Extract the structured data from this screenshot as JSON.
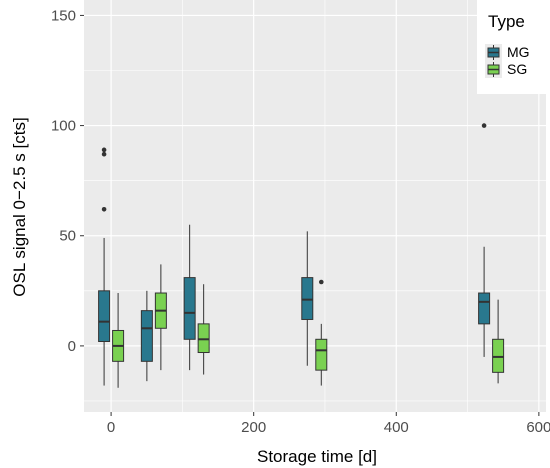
{
  "chart_data": {
    "type": "box",
    "xlabel": "Storage time [d]",
    "ylabel": "OSL signal 0−2.5 s [cts]",
    "xlim": [
      -38,
      610
    ],
    "ylim": [
      -30,
      157
    ],
    "x_ticks": [
      0,
      200,
      400,
      600
    ],
    "y_ticks": [
      0,
      50,
      100,
      150
    ],
    "x_tick_labels": [
      "0",
      "200",
      "400",
      "600"
    ],
    "y_tick_labels": [
      "0",
      "50",
      "100",
      "150"
    ],
    "grid": true,
    "legend": {
      "title": "Type",
      "position": "top-right",
      "entries": [
        "MG",
        "SG"
      ]
    },
    "series": [
      {
        "name": "MG",
        "color": "#29788e",
        "boxes": [
          {
            "x": 0,
            "min": -18,
            "q1": 2,
            "median": 11,
            "q3": 25,
            "max": 49,
            "outliers": [
              62,
              87,
              89
            ]
          },
          {
            "x": 60,
            "min": -16,
            "q1": -7,
            "median": 8,
            "q3": 16,
            "max": 25,
            "outliers": []
          },
          {
            "x": 120,
            "min": -11,
            "q1": 3,
            "median": 15,
            "q3": 31,
            "max": 55,
            "outliers": []
          },
          {
            "x": 285,
            "min": -9,
            "q1": 12,
            "median": 21,
            "q3": 31,
            "max": 52,
            "outliers": []
          },
          {
            "x": 533,
            "min": -5,
            "q1": 10,
            "median": 20,
            "q3": 24,
            "max": 45,
            "outliers": [
              100
            ]
          }
        ]
      },
      {
        "name": "SG",
        "color": "#7ad151",
        "boxes": [
          {
            "x": 0,
            "min": -19,
            "q1": -7,
            "median": 0,
            "q3": 7,
            "max": 24,
            "outliers": []
          },
          {
            "x": 60,
            "min": -11,
            "q1": 8,
            "median": 16,
            "q3": 24,
            "max": 37,
            "outliers": []
          },
          {
            "x": 120,
            "min": -13,
            "q1": -3,
            "median": 3,
            "q3": 10,
            "max": 28,
            "outliers": []
          },
          {
            "x": 285,
            "min": -18,
            "q1": -11,
            "median": -2,
            "q3": 3,
            "max": 10,
            "outliers": [
              29
            ]
          },
          {
            "x": 533,
            "min": -17,
            "q1": -12,
            "median": -5,
            "q3": 3,
            "max": 21,
            "outliers": []
          }
        ]
      }
    ]
  }
}
